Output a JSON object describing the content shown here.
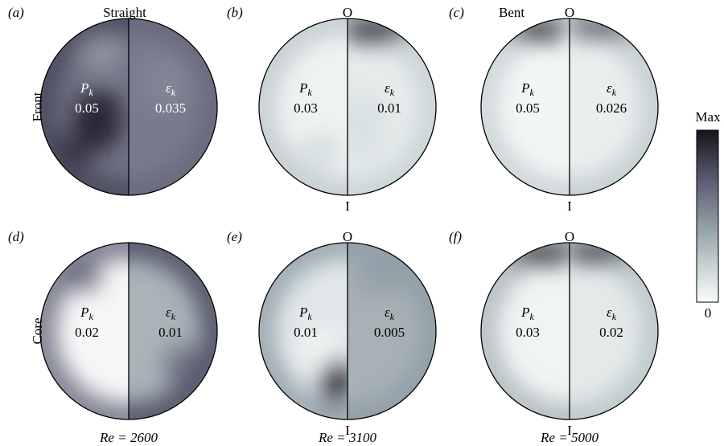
{
  "panels": [
    {
      "label": "(a)",
      "title": "Straight",
      "pk_symbol": "P",
      "pk_sub": "k",
      "pk_value": "0.05",
      "ek_symbol": "ε",
      "ek_sub": "k",
      "ek_value": "0.035"
    },
    {
      "label": "(b)",
      "top": "O",
      "bottom": "I",
      "pk_symbol": "P",
      "pk_sub": "k",
      "pk_value": "0.03",
      "ek_symbol": "ε",
      "ek_sub": "k",
      "ek_value": "0.01"
    },
    {
      "label": "(c)",
      "title": "Bent",
      "top": "O",
      "bottom": "I",
      "pk_symbol": "P",
      "pk_sub": "k",
      "pk_value": "0.05",
      "ek_symbol": "ε",
      "ek_sub": "k",
      "ek_value": "0.026"
    },
    {
      "label": "(d)",
      "pk_symbol": "P",
      "pk_sub": "k",
      "pk_value": "0.02",
      "ek_symbol": "ε",
      "ek_sub": "k",
      "ek_value": "0.01"
    },
    {
      "label": "(e)",
      "top": "O",
      "bottom": "I",
      "pk_symbol": "P",
      "pk_sub": "k",
      "pk_value": "0.01",
      "ek_symbol": "ε",
      "ek_sub": "k",
      "ek_value": "0.005"
    },
    {
      "label": "(f)",
      "top": "O",
      "bottom": "I",
      "pk_symbol": "P",
      "pk_sub": "k",
      "pk_value": "0.03",
      "ek_symbol": "ε",
      "ek_sub": "k",
      "ek_value": "0.02"
    }
  ],
  "row_labels": [
    "Front",
    "Core"
  ],
  "re_labels": [
    "Re = 2600",
    "Re = 3100",
    "Re = 5000"
  ],
  "colorbar": {
    "max_label": "Max",
    "min_label": "0"
  }
}
